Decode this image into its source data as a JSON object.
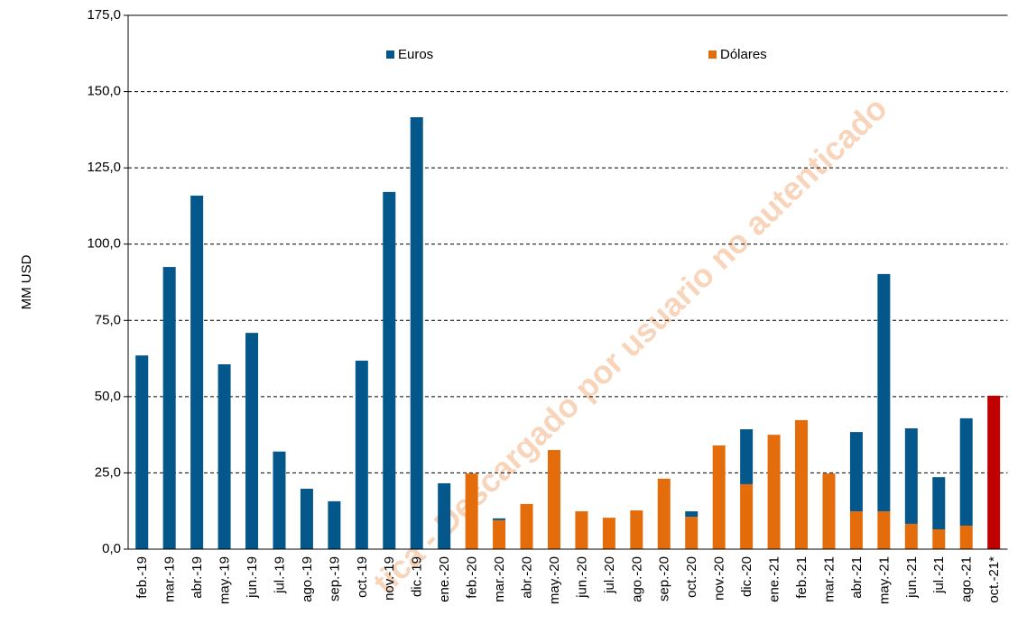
{
  "chart_data": {
    "type": "bar",
    "stacked": true,
    "y_label": "MM USD",
    "watermark": "tica - Descargado por usuario no autenticado",
    "categories": [
      "feb.-19",
      "mar.-19",
      "abr.-19",
      "may.-19",
      "jun.-19",
      "jul.-19",
      "ago.-19",
      "sep.-19",
      "oct.-19",
      "nov.-19",
      "dic.-19",
      "ene.-20",
      "feb.-20",
      "mar.-20",
      "abr.-20",
      "may.-20",
      "jun.-20",
      "jul.-20",
      "ago.-20",
      "sep.-20",
      "oct.-20",
      "nov.-20",
      "dic.-20",
      "ene.-21",
      "feb.-21",
      "mar.-21",
      "abr.-21",
      "may.-21",
      "jun.-21",
      "jul.-21",
      "ago.-21",
      "oct.-21*"
    ],
    "series": [
      {
        "name": "Dólares",
        "color": "#e46c0a",
        "point_colors": [
          "#e46c0a",
          "#e46c0a",
          "#e46c0a",
          "#e46c0a",
          "#e46c0a",
          "#e46c0a",
          "#e46c0a",
          "#e46c0a",
          "#e46c0a",
          "#e46c0a",
          "#e46c0a",
          "#e46c0a",
          "#e46c0a",
          "#e46c0a",
          "#e46c0a",
          "#e46c0a",
          "#e46c0a",
          "#e46c0a",
          "#e46c0a",
          "#e46c0a",
          "#e46c0a",
          "#e46c0a",
          "#e46c0a",
          "#e46c0a",
          "#e46c0a",
          "#e46c0a",
          "#e46c0a",
          "#e46c0a",
          "#e46c0a",
          "#e46c0a",
          "#e46c0a",
          "#c00000"
        ],
        "values": [
          0,
          0,
          0,
          0,
          0,
          0,
          0,
          0,
          0,
          0,
          0,
          0,
          24.8,
          9.5,
          14.8,
          32.5,
          12.4,
          10.3,
          12.7,
          23.1,
          10.6,
          34.0,
          21.3,
          37.5,
          42.3,
          24.8,
          12.4,
          12.4,
          8.3,
          6.5,
          7.7,
          50.3
        ]
      },
      {
        "name": "Euros",
        "color": "#03578a",
        "values": [
          63.5,
          92.5,
          115.9,
          60.6,
          70.9,
          32.0,
          19.8,
          15.7,
          61.8,
          117.1,
          141.6,
          21.6,
          0,
          0.6,
          0,
          0,
          0,
          0,
          0,
          0,
          1.8,
          0,
          18.0,
          0,
          0,
          0,
          26.0,
          77.8,
          31.3,
          17.1,
          35.2,
          0
        ]
      }
    ],
    "ylim": [
      0,
      175
    ],
    "yticks": [
      {
        "value": 0,
        "label": "0,0"
      },
      {
        "value": 25,
        "label": "25,0"
      },
      {
        "value": 50,
        "label": "50,0"
      },
      {
        "value": 75,
        "label": "75,0"
      },
      {
        "value": 100,
        "label": "100,0"
      },
      {
        "value": 125,
        "label": "125,0"
      },
      {
        "value": 150,
        "label": "150,0"
      },
      {
        "value": 175,
        "label": "175,0"
      }
    ],
    "grid": true
  }
}
